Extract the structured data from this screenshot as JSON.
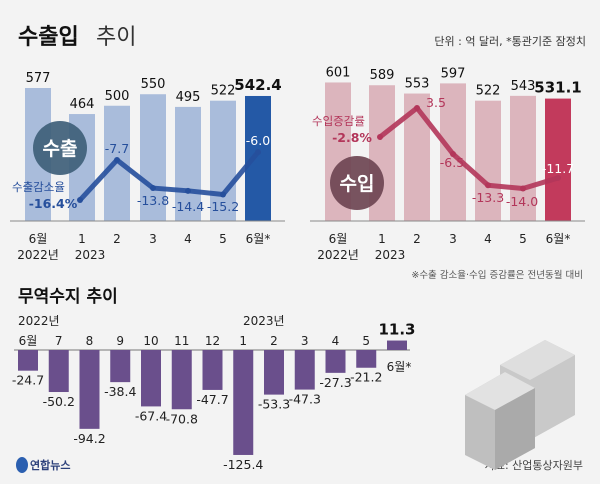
{
  "title_bold": "수출입",
  "title_light": "추이",
  "unit_note": "단위 : 억 달러, *통관기준 잠정치",
  "footnote": "※수출 감소율·수입 증감률은 전년동월 대비",
  "source": "자료: 산업통상자원부",
  "logo": "연합뉴스",
  "colors": {
    "export_bar": "#a9bcdb",
    "export_highlight": "#2459a6",
    "export_line": "#264f9c",
    "export_circle": "#3f6079",
    "import_bar": "#dcb5bd",
    "import_highlight": "#c23a5c",
    "import_line": "#b3365a",
    "import_circle": "#6e4553",
    "trade_bar": "#6a4f8c"
  },
  "chart_data": [
    {
      "type": "bar+line",
      "badge": "수출",
      "categories": [
        "6월",
        "1",
        "2",
        "3",
        "4",
        "5",
        "6월*"
      ],
      "year_labels": [
        "2022년",
        "2023"
      ],
      "bars": [
        577,
        464,
        500,
        550,
        495,
        522,
        542.4
      ],
      "bar_labels": [
        "577",
        "464",
        "500",
        "550",
        "495",
        "522",
        "542.4"
      ],
      "line_name": "수출감소율",
      "line": [
        -16.4,
        -7.7,
        -13.8,
        -14.4,
        -15.2,
        -6.0
      ],
      "line_labels": [
        "-16.4%",
        "-7.7",
        "-13.8",
        "-14.4",
        "-15.2",
        "-6.0"
      ]
    },
    {
      "type": "bar+line",
      "badge": "수입",
      "categories": [
        "6월",
        "1",
        "2",
        "3",
        "4",
        "5",
        "6월*"
      ],
      "year_labels": [
        "2022년",
        "2023"
      ],
      "bars": [
        601,
        589,
        553,
        597,
        522,
        543,
        531.1
      ],
      "bar_labels": [
        "601",
        "589",
        "553",
        "597",
        "522",
        "543",
        "531.1"
      ],
      "line_name": "수입증감률",
      "line": [
        -2.8,
        3.5,
        -6.5,
        -13.3,
        -14.0,
        -11.7
      ],
      "line_labels": [
        "-2.8%",
        "3.5",
        "-6.5",
        "-13.3",
        "-14.0",
        "-11.7"
      ]
    },
    {
      "type": "bar",
      "title": "무역수지 추이",
      "year_labels": [
        "2022년",
        "2023년"
      ],
      "categories": [
        "6월",
        "7",
        "8",
        "9",
        "10",
        "11",
        "12",
        "1",
        "2",
        "3",
        "4",
        "5",
        "6월*"
      ],
      "values": [
        -24.7,
        -50.2,
        -94.2,
        -38.4,
        -67.4,
        -70.8,
        -47.7,
        -125.4,
        -53.3,
        -47.3,
        -27.3,
        -21.2,
        11.3
      ],
      "labels": [
        "-24.7",
        "-50.2",
        "-94.2",
        "-38.4",
        "-67.4",
        "-70.8",
        "-47.7",
        "-125.4",
        "-53.3",
        "-47.3",
        "-27.3",
        "-21.2",
        "11.3"
      ]
    }
  ]
}
